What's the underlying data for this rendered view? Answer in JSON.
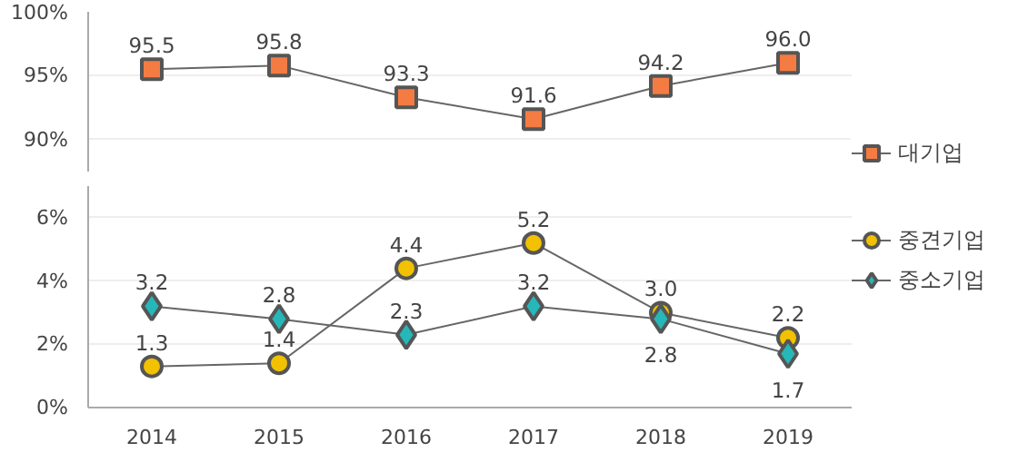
{
  "chart_data": [
    {
      "type": "line",
      "categories": [
        "2014",
        "2015",
        "2016",
        "2017",
        "2018",
        "2019"
      ],
      "ylim": [
        87.5,
        100
      ],
      "yticks": [
        {
          "value": 90,
          "label": "90%"
        },
        {
          "value": 95,
          "label": "95%"
        },
        {
          "value": 100,
          "label": "100%"
        }
      ],
      "grid": "y",
      "legend": "right",
      "tick_labels": "y",
      "series": [
        {
          "name": "대기업",
          "color": "#f47b42",
          "marker": "square",
          "values": [
            95.5,
            95.8,
            93.3,
            91.6,
            94.2,
            96.0
          ],
          "value_labels": [
            "95.5",
            "95.8",
            "93.3",
            "91.6",
            "94.2",
            "96.0"
          ]
        }
      ]
    },
    {
      "type": "line",
      "categories": [
        "2014",
        "2015",
        "2016",
        "2017",
        "2018",
        "2019"
      ],
      "ylim": [
        0,
        7
      ],
      "yticks": [
        {
          "value": 0,
          "label": "0%"
        },
        {
          "value": 2,
          "label": "2%"
        },
        {
          "value": 4,
          "label": "4%"
        },
        {
          "value": 6,
          "label": "6%"
        }
      ],
      "grid": "y",
      "legend": "right",
      "series": [
        {
          "name": "중견기업",
          "color": "#f2c100",
          "marker": "circle",
          "values": [
            1.3,
            1.4,
            4.4,
            5.2,
            3.0,
            2.2
          ],
          "value_labels": [
            "1.3",
            "1.4",
            "4.4",
            "5.2",
            "3.0",
            "2.2"
          ]
        },
        {
          "name": "중소기업",
          "color": "#26b7b9",
          "marker": "diamond",
          "values": [
            3.2,
            2.8,
            2.3,
            3.2,
            2.8,
            1.7
          ],
          "value_labels": [
            "3.2",
            "2.8",
            "2.3",
            "3.2",
            "2.8",
            "1.7"
          ]
        }
      ]
    }
  ]
}
